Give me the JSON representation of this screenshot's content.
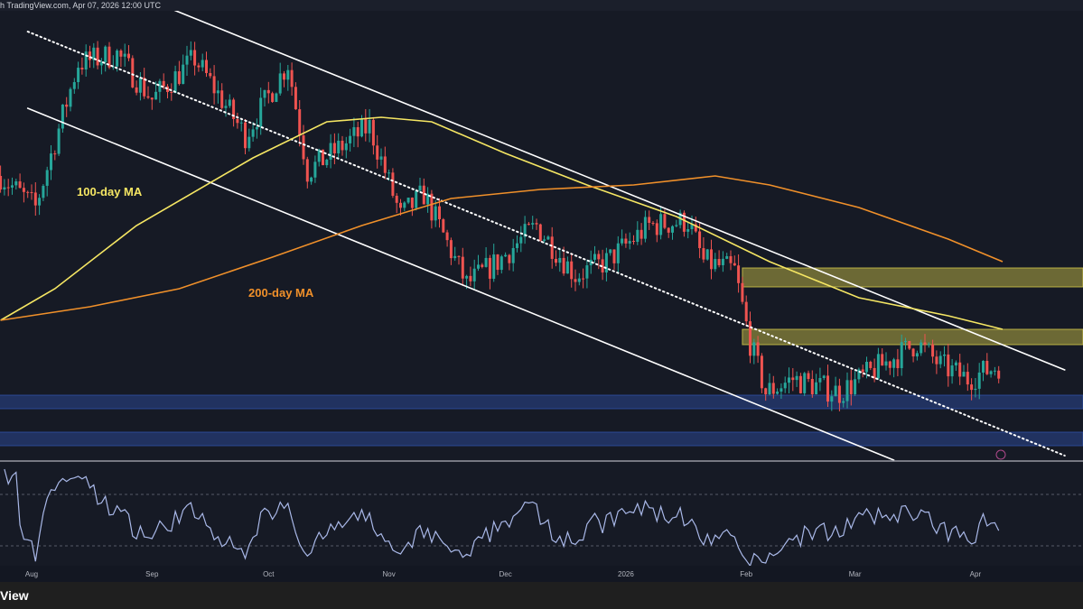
{
  "header": {
    "text": "h TradingView.com, Apr 07, 2026 12:00 UTC"
  },
  "footer": {
    "brand": "View"
  },
  "chart_data": {
    "type": "candlestick",
    "x_unit": "days since Aug 1 2025",
    "y_unit": "price index (unlabeled)",
    "xticks": [
      {
        "label": "Aug",
        "day": 0
      },
      {
        "label": "Sep",
        "day": 31
      },
      {
        "label": "Oct",
        "day": 61
      },
      {
        "label": "Nov",
        "day": 92
      },
      {
        "label": "Dec",
        "day": 122
      },
      {
        "label": "2026",
        "day": 153
      },
      {
        "label": "Feb",
        "day": 184
      },
      {
        "label": "Mar",
        "day": 212
      },
      {
        "label": "Apr",
        "day": 243
      }
    ],
    "price_path": [
      [
        -8,
        65
      ],
      [
        1,
        58
      ],
      [
        12,
        90
      ],
      [
        22,
        92
      ],
      [
        31,
        82
      ],
      [
        42,
        91
      ],
      [
        55,
        74
      ],
      [
        66,
        90
      ],
      [
        71,
        66
      ],
      [
        87,
        76
      ],
      [
        95,
        56
      ],
      [
        101,
        61
      ],
      [
        112,
        41
      ],
      [
        120,
        46
      ],
      [
        130,
        54
      ],
      [
        140,
        43
      ],
      [
        148,
        46
      ],
      [
        159,
        54
      ],
      [
        169,
        55
      ],
      [
        173,
        46
      ],
      [
        181,
        44
      ],
      [
        185,
        28
      ],
      [
        189,
        17
      ],
      [
        196,
        20
      ],
      [
        208,
        17
      ],
      [
        217,
        22
      ],
      [
        228,
        28
      ],
      [
        234,
        23
      ],
      [
        241,
        20
      ],
      [
        249,
        23
      ]
    ],
    "moving_averages": [
      {
        "name": "100-day MA",
        "color": "#f5e663",
        "points": [
          [
            -8,
            33
          ],
          [
            6,
            40
          ],
          [
            27,
            54
          ],
          [
            57,
            69
          ],
          [
            76,
            77
          ],
          [
            90,
            78
          ],
          [
            103,
            77
          ],
          [
            122,
            70
          ],
          [
            143,
            63
          ],
          [
            166,
            56
          ],
          [
            190,
            46
          ],
          [
            213,
            38
          ],
          [
            236,
            34
          ],
          [
            250,
            31
          ]
        ]
      },
      {
        "name": "200-day MA",
        "color": "#f0902a",
        "points": [
          [
            -8,
            33
          ],
          [
            15,
            36
          ],
          [
            38,
            40
          ],
          [
            62,
            47
          ],
          [
            85,
            54
          ],
          [
            108,
            60
          ],
          [
            131,
            62
          ],
          [
            155,
            63
          ],
          [
            176,
            65
          ],
          [
            190,
            63
          ],
          [
            213,
            58
          ],
          [
            236,
            51
          ],
          [
            250,
            46
          ]
        ]
      }
    ],
    "trendlines": [
      {
        "name": "channel-upper",
        "style": "solid",
        "points": [
          [
            36,
            102
          ],
          [
            266,
            22
          ]
        ]
      },
      {
        "name": "channel-lower",
        "style": "solid",
        "points": [
          [
            -1,
            80
          ],
          [
            222,
            2
          ]
        ]
      },
      {
        "name": "channel-mid",
        "style": "dotted",
        "points": [
          [
            -1,
            97
          ],
          [
            266,
            3
          ]
        ]
      }
    ],
    "zones": [
      {
        "name": "resistance-zone-upper",
        "color": "#d4c94a",
        "from_day": 183,
        "range": [
          40.4,
          44.6
        ]
      },
      {
        "name": "resistance-zone-lower",
        "color": "#d4c94a",
        "from_day": 183,
        "range": [
          27.6,
          31
        ]
      },
      {
        "name": "support-zone-upper",
        "color": "#2f4fa8",
        "from_day": -10,
        "range": [
          13.4,
          16.4
        ]
      },
      {
        "name": "support-zone-lower",
        "color": "#2f4fa8",
        "from_day": -10,
        "range": [
          5.2,
          8.2
        ]
      }
    ],
    "colors": {
      "up": "#26a69a",
      "down": "#ef5350",
      "rsi": "#a9b8e8"
    }
  }
}
